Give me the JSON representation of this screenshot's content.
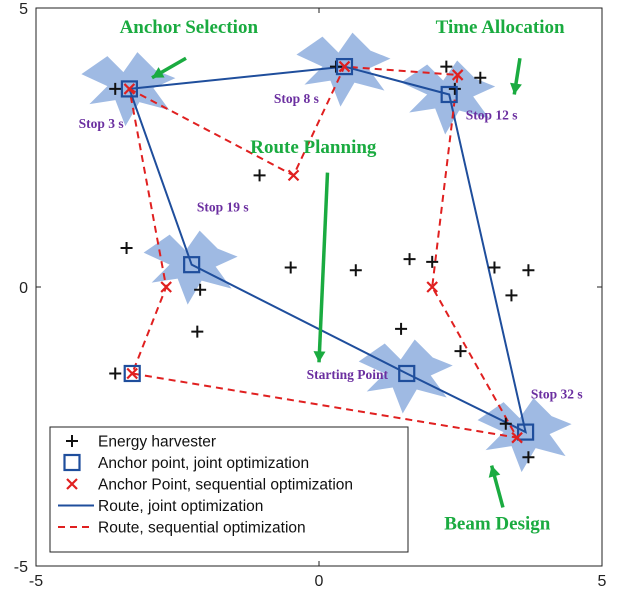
{
  "chart_data": {
    "type": "scatter",
    "xlim": [
      -5,
      5
    ],
    "ylim": [
      -5,
      5
    ],
    "x_ticks": [
      -5,
      0,
      5
    ],
    "y_ticks": [
      -5,
      0,
      5
    ],
    "grid": false,
    "legend_position": "bottom-left",
    "colors": {
      "harvester": "#111111",
      "joint": "#1f4e9c",
      "sequential": "#e02020",
      "beam": "#7a9fd8",
      "stop_label": "#6b2fa0",
      "annotation": "#1aab40"
    },
    "harvesters": [
      [
        -3.6,
        3.55
      ],
      [
        -3.4,
        0.7
      ],
      [
        -2.1,
        -0.05
      ],
      [
        -2.15,
        -0.8
      ],
      [
        -3.6,
        -1.55
      ],
      [
        -1.05,
        2.0
      ],
      [
        -0.5,
        0.35
      ],
      [
        0.3,
        3.95
      ],
      [
        0.65,
        0.3
      ],
      [
        1.45,
        -0.75
      ],
      [
        1.6,
        0.5
      ],
      [
        2.0,
        0.45
      ],
      [
        2.25,
        3.95
      ],
      [
        2.4,
        3.55
      ],
      [
        2.5,
        -1.15
      ],
      [
        2.85,
        3.75
      ],
      [
        3.1,
        0.35
      ],
      [
        3.4,
        -0.15
      ],
      [
        3.7,
        0.3
      ],
      [
        3.3,
        -2.45
      ],
      [
        3.7,
        -3.05
      ]
    ],
    "joint_anchors": [
      [
        -3.35,
        3.55
      ],
      [
        0.45,
        3.95
      ],
      [
        2.3,
        3.45
      ],
      [
        3.65,
        -2.6
      ],
      [
        1.55,
        -1.55
      ],
      [
        -2.25,
        0.4
      ],
      [
        -3.3,
        -1.55
      ]
    ],
    "sequential_anchors": [
      [
        -3.35,
        3.55
      ],
      [
        -0.45,
        2.0
      ],
      [
        0.45,
        3.95
      ],
      [
        2.45,
        3.8
      ],
      [
        2.0,
        0.0
      ],
      [
        3.5,
        -2.7
      ],
      [
        -3.3,
        -1.55
      ],
      [
        -2.7,
        0.0
      ]
    ],
    "series": [
      {
        "name": "Route, joint optimization",
        "x": [
          -3.35,
          0.45,
          2.3,
          3.65,
          1.55,
          -2.25,
          -3.35
        ],
        "y": [
          3.55,
          3.95,
          3.45,
          -2.6,
          -1.55,
          0.4,
          3.55
        ]
      },
      {
        "name": "Route, sequential optimization",
        "x": [
          -3.35,
          -0.45,
          0.45,
          2.45,
          2.0,
          3.5,
          -3.3,
          -2.7,
          -3.35
        ],
        "y": [
          3.55,
          2.0,
          3.95,
          3.8,
          0.0,
          -2.7,
          -1.55,
          0.0,
          3.55
        ]
      }
    ],
    "beam_centers": [
      [
        -3.35,
        3.6
      ],
      [
        0.45,
        3.95
      ],
      [
        2.3,
        3.45
      ],
      [
        -2.25,
        0.4
      ],
      [
        1.55,
        -1.55
      ],
      [
        3.65,
        -2.6
      ]
    ],
    "stop_labels": [
      {
        "text": "Stop 3 s",
        "x": -3.85,
        "y": 2.85
      },
      {
        "text": "Stop 8 s",
        "x": -0.4,
        "y": 3.3
      },
      {
        "text": "Stop 12 s",
        "x": 3.05,
        "y": 3.0
      },
      {
        "text": "Stop 19 s",
        "x": -1.7,
        "y": 1.35
      },
      {
        "text": "Starting Point",
        "x": 0.5,
        "y": -1.65
      },
      {
        "text": "Stop 32 s",
        "x": 4.2,
        "y": -2.0
      }
    ],
    "annotations": [
      {
        "text": "Anchor Selection",
        "x": -2.3,
        "y": 4.55
      },
      {
        "text": "Time Allocation",
        "x": 3.2,
        "y": 4.55
      },
      {
        "text": "Route Planning",
        "x": -0.1,
        "y": 2.4
      },
      {
        "text": "Beam Design",
        "x": 3.15,
        "y": -4.35
      }
    ],
    "legend": [
      {
        "label": "Energy harvester",
        "kind": "plus"
      },
      {
        "label": "Anchor point, joint optimization",
        "kind": "square"
      },
      {
        "label": "Anchor Point, sequential optimization",
        "kind": "cross"
      },
      {
        "label": "Route, joint optimization",
        "kind": "solid"
      },
      {
        "label": "Route, sequential optimization",
        "kind": "dashed"
      }
    ]
  }
}
